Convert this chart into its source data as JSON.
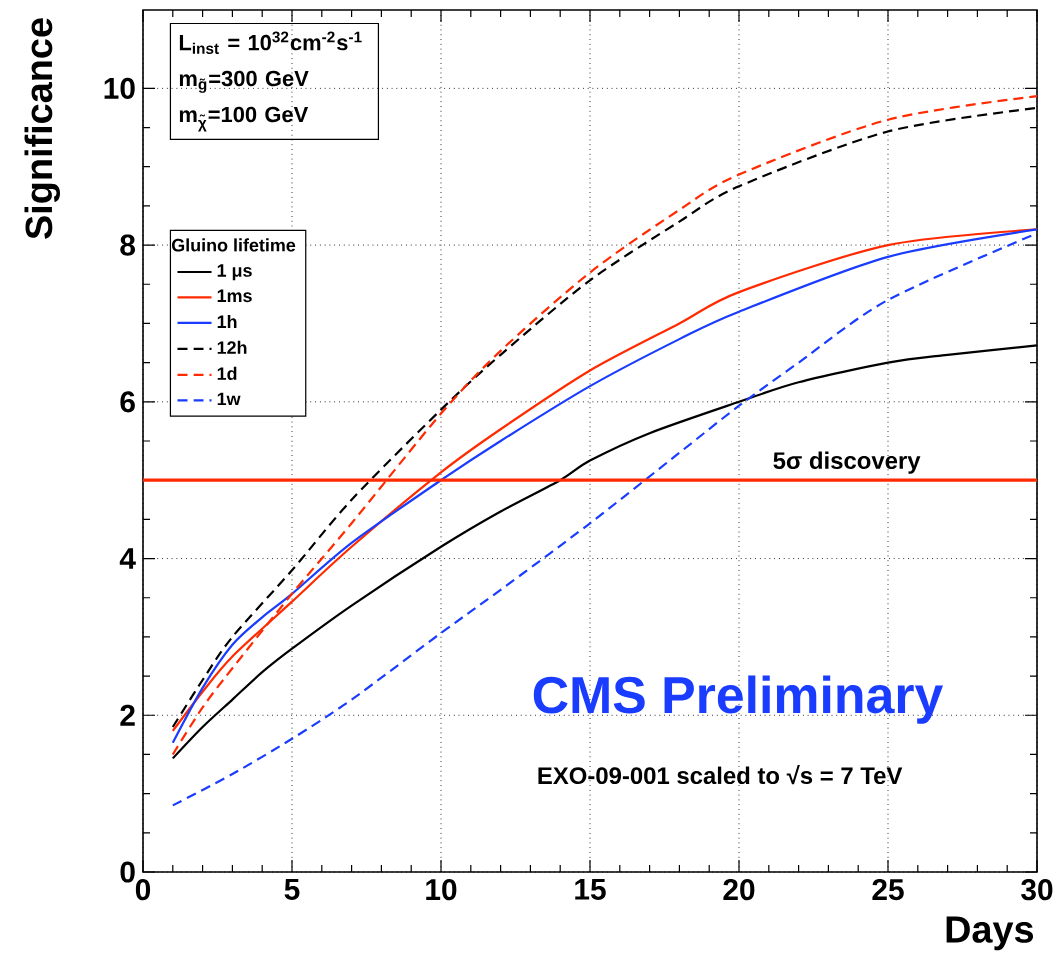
{
  "chart_data": {
    "type": "line",
    "xlabel": "Days",
    "ylabel": "Significance",
    "legend_title": "Gluino lifetime",
    "legend": "top left",
    "grid": true,
    "line_style": "solid",
    "xlim": [
      0,
      30
    ],
    "ylim": [
      0,
      11
    ],
    "xticks": [
      0,
      5,
      10,
      15,
      20,
      25,
      30
    ],
    "yticks": [
      0,
      2,
      4,
      6,
      8,
      10
    ],
    "series": [
      {
        "name": "1 μs",
        "color": "#000000",
        "x": [
          1,
          2,
          3,
          4,
          5,
          7,
          10,
          12,
          14,
          15,
          17,
          20,
          22,
          25,
          27,
          30
        ],
        "values": [
          1.45,
          1.85,
          2.2,
          2.55,
          2.85,
          3.4,
          4.15,
          4.6,
          5.0,
          5.25,
          5.6,
          6.0,
          6.25,
          6.5,
          6.6,
          6.72
        ]
      },
      {
        "name": "1ms",
        "color": "#ff2a00",
        "x": [
          1,
          2,
          3,
          5,
          7,
          10,
          12,
          15,
          18,
          20,
          25,
          30
        ],
        "values": [
          1.8,
          2.3,
          2.75,
          3.45,
          4.15,
          5.1,
          5.65,
          6.4,
          7.0,
          7.4,
          8.0,
          8.2
        ]
      },
      {
        "name": "1h",
        "color": "#1a3cff",
        "x": [
          1,
          2,
          3,
          4,
          5,
          7,
          10,
          12,
          15,
          18,
          20,
          25,
          30
        ],
        "values": [
          1.65,
          2.35,
          2.9,
          3.25,
          3.55,
          4.2,
          5.0,
          5.5,
          6.2,
          6.8,
          7.15,
          7.85,
          8.2
        ]
      },
      {
        "name": "12h",
        "color": "#000000",
        "line_style": "dashed",
        "x": [
          1,
          2,
          3,
          5,
          7,
          10,
          12,
          15,
          18,
          20,
          25,
          30
        ],
        "values": [
          1.85,
          2.45,
          3.0,
          3.85,
          4.75,
          5.9,
          6.6,
          7.55,
          8.3,
          8.75,
          9.45,
          9.75
        ]
      },
      {
        "name": "1d",
        "color": "#ff2a00",
        "line_style": "dashed",
        "x": [
          1,
          2,
          3,
          5,
          7,
          10,
          12,
          15,
          18,
          20,
          25,
          30
        ],
        "values": [
          1.5,
          2.1,
          2.6,
          3.55,
          4.45,
          5.85,
          6.65,
          7.65,
          8.45,
          8.9,
          9.6,
          9.9
        ]
      },
      {
        "name": "1w",
        "color": "#1a3cff",
        "line_style": "dashed",
        "x": [
          1,
          3,
          5,
          7,
          10,
          12,
          15,
          18,
          20,
          22,
          25,
          30
        ],
        "values": [
          0.85,
          1.25,
          1.7,
          2.2,
          3.05,
          3.6,
          4.45,
          5.35,
          5.95,
          6.5,
          7.3,
          8.15
        ]
      }
    ],
    "ref_lines": [
      {
        "axis": "y",
        "value": 5,
        "label": "5σ discovery",
        "color": "#ff2a00"
      }
    ],
    "annotations": [
      "L$_{inst}$ = 10$^{32}$cm$^{-2}$s$^{-1}$",
      "m$_{g̃}$=300 GeV",
      "m$_{χ̃}$=100 GeV",
      "CMS Preliminary",
      "EXO-09-001 scaled to √s = 7 TeV"
    ]
  }
}
